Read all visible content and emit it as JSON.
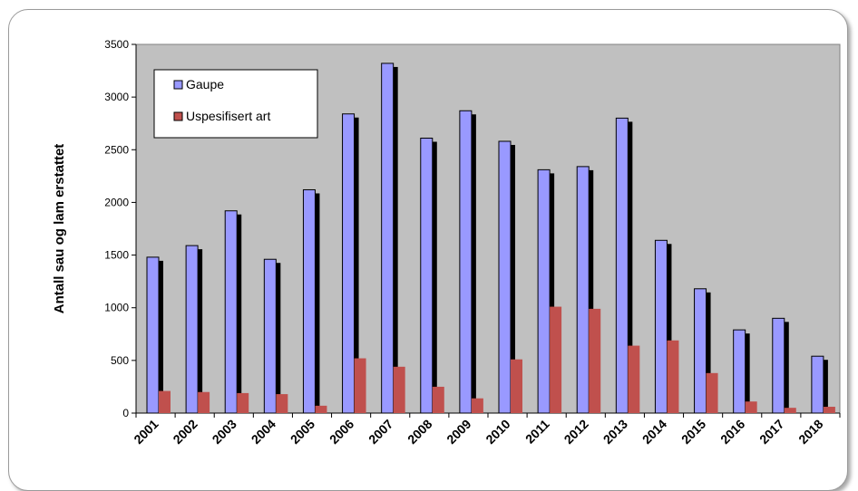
{
  "chart_data": {
    "type": "bar",
    "title": "",
    "xlabel": "",
    "ylabel": "Antall sau og lam erstattet",
    "ylim": [
      0,
      3500
    ],
    "yticks": [
      0,
      500,
      1000,
      1500,
      2000,
      2500,
      3000,
      3500
    ],
    "grid": false,
    "legend_position": "top-left",
    "plot_background": "#c0c0c0",
    "categories": [
      "2001",
      "2002",
      "2003",
      "2004",
      "2005",
      "2006",
      "2007",
      "2008",
      "2009",
      "2010",
      "2011",
      "2012",
      "2013",
      "2014",
      "2015",
      "2016",
      "2017",
      "2018"
    ],
    "series": [
      {
        "name": "Gaupe",
        "color": "#9999ff",
        "values": [
          1480,
          1590,
          1920,
          1460,
          2120,
          2840,
          3320,
          2610,
          2870,
          2580,
          2310,
          2340,
          2800,
          1640,
          1180,
          790,
          900,
          540
        ]
      },
      {
        "name": "Uspesifisert art",
        "color": "#c0504d",
        "values": [
          210,
          200,
          190,
          180,
          70,
          520,
          440,
          250,
          140,
          510,
          1010,
          990,
          640,
          690,
          380,
          110,
          50,
          60
        ]
      }
    ]
  }
}
